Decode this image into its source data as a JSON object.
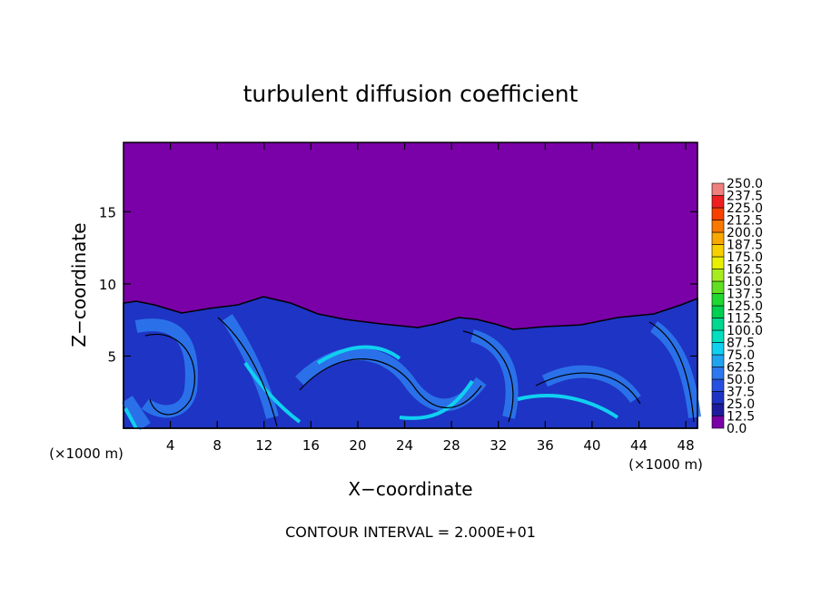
{
  "chart_data": {
    "type": "contour",
    "title": "turbulent diffusion coefficient",
    "x_label": "X−coordinate",
    "y_label": "Z−coordinate",
    "x_unit": "(×1000 m)",
    "annotation": "CONTOUR INTERVAL = 2.000E+01",
    "xlim": [
      0,
      49
    ],
    "ylim": [
      0,
      19.8
    ],
    "xticks": [
      4,
      8,
      12,
      16,
      20,
      24,
      28,
      32,
      36,
      40,
      44,
      48
    ],
    "yticks": [
      5,
      10,
      15
    ],
    "colorbar": {
      "ticks": [
        {
          "value": 0,
          "label": "0.0"
        },
        {
          "value": 12.5,
          "label": "12.5"
        },
        {
          "value": 25,
          "label": "25.0"
        },
        {
          "value": 37.5,
          "label": "37.5"
        },
        {
          "value": 50,
          "label": "50.0"
        },
        {
          "value": 62.5,
          "label": "62.5"
        },
        {
          "value": 75,
          "label": "75.0"
        },
        {
          "value": 87.5,
          "label": "87.5"
        },
        {
          "value": 100,
          "label": "100.0"
        },
        {
          "value": 112.5,
          "label": "112.5"
        },
        {
          "value": 125,
          "label": "125.0"
        },
        {
          "value": 137.5,
          "label": "137.5"
        },
        {
          "value": 150,
          "label": "150.0"
        },
        {
          "value": 162.5,
          "label": "162.5"
        },
        {
          "value": 175,
          "label": "175.0"
        },
        {
          "value": 187.5,
          "label": "187.5"
        },
        {
          "value": 200,
          "label": "200.0"
        },
        {
          "value": 212.5,
          "label": "212.5"
        },
        {
          "value": 225,
          "label": "225.0"
        },
        {
          "value": 237.5,
          "label": "237.5"
        },
        {
          "value": 250,
          "label": "250.0"
        }
      ],
      "colors": [
        "#7a00a8",
        "#1c1c9c",
        "#1e34c4",
        "#2850e0",
        "#2c78ee",
        "#20a4f0",
        "#10d0f0",
        "#00e0c0",
        "#00d890",
        "#00d050",
        "#20d830",
        "#60e020",
        "#a8ec20",
        "#e8f000",
        "#f8d000",
        "#f8a800",
        "#f87800",
        "#f84000",
        "#f02020",
        "#f08080"
      ]
    }
  }
}
